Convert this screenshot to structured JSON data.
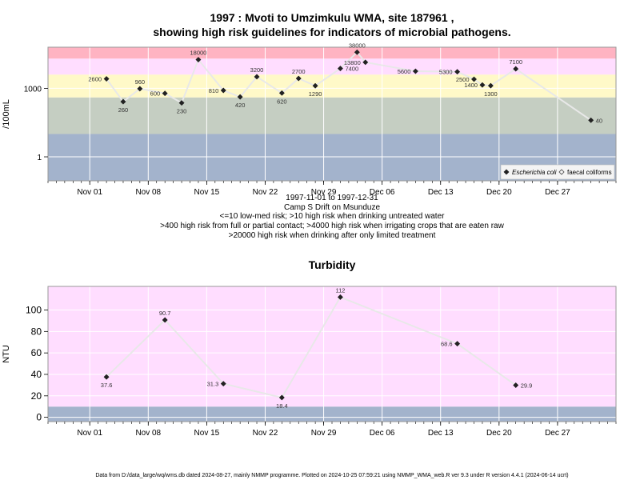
{
  "title_line1": "1997 : Mvoti to Umzimkulu WMA, site 187961 ,",
  "title_line2": "showing high risk guidelines for indicators of microbial pathogens.",
  "info_lines": [
    "1997-11-01 to 1997-12-31",
    "Camp S Drift on Msunduze",
    "<=10 low-med risk; >10 high risk when drinking untreated water",
    ">400 high risk from full or partial contact; >4000 high risk when irrigating crops that are eaten raw",
    ">20000 high risk when drinking after only limited treatment"
  ],
  "footer": "Data from D:/data_large/wq/wms.db dated 2024-08-27, mainly NMMP programme. Plotted on 2024-10-25 07:59:21 using NMMP_WMA_web.R ver 9.3 under R version 4.4.1 (2024-06-14 ucrt)",
  "colors": {
    "band_blue": "#a3b3cc",
    "band_green": "#c5cec2",
    "band_yellow": "#fff9c8",
    "band_pink": "#ffe6f0",
    "band_magenta": "#ffddff",
    "band_red": "#ffb3c2",
    "line": "#e8e8e8",
    "marker": "#222222",
    "grid": "#ffffff"
  },
  "chart_data": [
    {
      "type": "line",
      "title": "",
      "ylabel": "/100mL",
      "y_scale": "log",
      "x_range": [
        "1997-10-27",
        "1998-01-03"
      ],
      "x_ticks": [
        {
          "date": "1997-11-01",
          "label": "Nov 01"
        },
        {
          "date": "1997-11-08",
          "label": "Nov 08"
        },
        {
          "date": "1997-11-15",
          "label": "Nov 15"
        },
        {
          "date": "1997-11-22",
          "label": "Nov 22"
        },
        {
          "date": "1997-11-29",
          "label": "Nov 29"
        },
        {
          "date": "1997-12-06",
          "label": "Dec 06"
        },
        {
          "date": "1997-12-13",
          "label": "Dec 13"
        },
        {
          "date": "1997-12-20",
          "label": "Dec 20"
        },
        {
          "date": "1997-12-27",
          "label": "Dec 27"
        }
      ],
      "y_ticks": [
        {
          "value": 1,
          "label": "1"
        },
        {
          "value": 1000,
          "label": "1000"
        }
      ],
      "bands": [
        {
          "from": 0.01,
          "to": 10,
          "color": "#a3b3cc"
        },
        {
          "from": 10,
          "to": 400,
          "color": "#c5cec2"
        },
        {
          "from": 400,
          "to": 4000,
          "color": "#fff9c8"
        },
        {
          "from": 4000,
          "to": 20000,
          "color": "#ffddff"
        },
        {
          "from": 20000,
          "to": 100000,
          "color": "#ffb3c2"
        }
      ],
      "legend": {
        "position": "bottom-right",
        "entries": [
          "Escherichia coli",
          "faecal coliforms"
        ]
      },
      "series": [
        {
          "name": "Escherichia coli",
          "points": [
            {
              "date": "1997-11-03",
              "value": 2600,
              "label": "2600"
            },
            {
              "date": "1997-11-05",
              "value": 260,
              "label": "260"
            },
            {
              "date": "1997-11-07",
              "value": 960,
              "label": "960"
            },
            {
              "date": "1997-11-10",
              "value": 600,
              "label": "600"
            },
            {
              "date": "1997-11-12",
              "value": 230,
              "label": "230"
            },
            {
              "date": "1997-11-14",
              "value": 18000,
              "label": "18000"
            },
            {
              "date": "1997-11-17",
              "value": 810,
              "label": "810"
            },
            {
              "date": "1997-11-19",
              "value": 420,
              "label": "420"
            },
            {
              "date": "1997-11-21",
              "value": 3200,
              "label": "3200"
            },
            {
              "date": "1997-11-24",
              "value": 620,
              "label": "620"
            },
            {
              "date": "1997-11-26",
              "value": 2700,
              "label": "2700"
            },
            {
              "date": "1997-11-28",
              "value": 1290,
              "label": "1290"
            },
            {
              "date": "1997-12-01",
              "value": 7400,
              "label": "7400"
            },
            {
              "date": "1997-12-03",
              "value": 38000,
              "label": "38000"
            },
            {
              "date": "1997-12-04",
              "value": 13800,
              "label": "13800"
            },
            {
              "date": "1997-12-10",
              "value": 5600,
              "label": "5600"
            },
            {
              "date": "1997-12-15",
              "value": 5300,
              "label": "5300"
            },
            {
              "date": "1997-12-17",
              "value": 2500,
              "label": "2500"
            },
            {
              "date": "1997-12-18",
              "value": 1400,
              "label": "1400"
            },
            {
              "date": "1997-12-19",
              "value": 1300,
              "label": "1300"
            },
            {
              "date": "1997-12-22",
              "value": 7100,
              "label": "7100"
            },
            {
              "date": "1997-12-31",
              "value": 40,
              "label": "40"
            }
          ]
        }
      ]
    },
    {
      "type": "line",
      "title": "Turbidity",
      "ylabel": "NTU",
      "x_range": [
        "1997-10-27",
        "1998-01-03"
      ],
      "ylim": [
        -4,
        122
      ],
      "x_ticks": [
        {
          "date": "1997-11-01",
          "label": "Nov 01"
        },
        {
          "date": "1997-11-08",
          "label": "Nov 08"
        },
        {
          "date": "1997-11-15",
          "label": "Nov 15"
        },
        {
          "date": "1997-11-22",
          "label": "Nov 22"
        },
        {
          "date": "1997-11-29",
          "label": "Nov 29"
        },
        {
          "date": "1997-12-06",
          "label": "Dec 06"
        },
        {
          "date": "1997-12-13",
          "label": "Dec 13"
        },
        {
          "date": "1997-12-20",
          "label": "Dec 20"
        },
        {
          "date": "1997-12-27",
          "label": "Dec 27"
        }
      ],
      "y_ticks": [
        {
          "value": 0,
          "label": "0"
        },
        {
          "value": 20,
          "label": "20"
        },
        {
          "value": 40,
          "label": "40"
        },
        {
          "value": 60,
          "label": "60"
        },
        {
          "value": 80,
          "label": "80"
        },
        {
          "value": 100,
          "label": "100"
        }
      ],
      "bands": [
        {
          "from": -4,
          "to": 10,
          "color": "#a3b3cc"
        },
        {
          "from": 10,
          "to": 122,
          "color": "#ffddff"
        }
      ],
      "series": [
        {
          "points": [
            {
              "date": "1997-11-03",
              "value": 37.6,
              "label": "37.6"
            },
            {
              "date": "1997-11-10",
              "value": 90.7,
              "label": "90.7"
            },
            {
              "date": "1997-11-17",
              "value": 31.3,
              "label": "31.3"
            },
            {
              "date": "1997-11-24",
              "value": 18.4,
              "label": "18.4"
            },
            {
              "date": "1997-12-01",
              "value": 112,
              "label": "112"
            },
            {
              "date": "1997-12-15",
              "value": 68.6,
              "label": "68.6"
            },
            {
              "date": "1997-12-22",
              "value": 29.9,
              "label": "29.9"
            }
          ]
        }
      ]
    }
  ]
}
